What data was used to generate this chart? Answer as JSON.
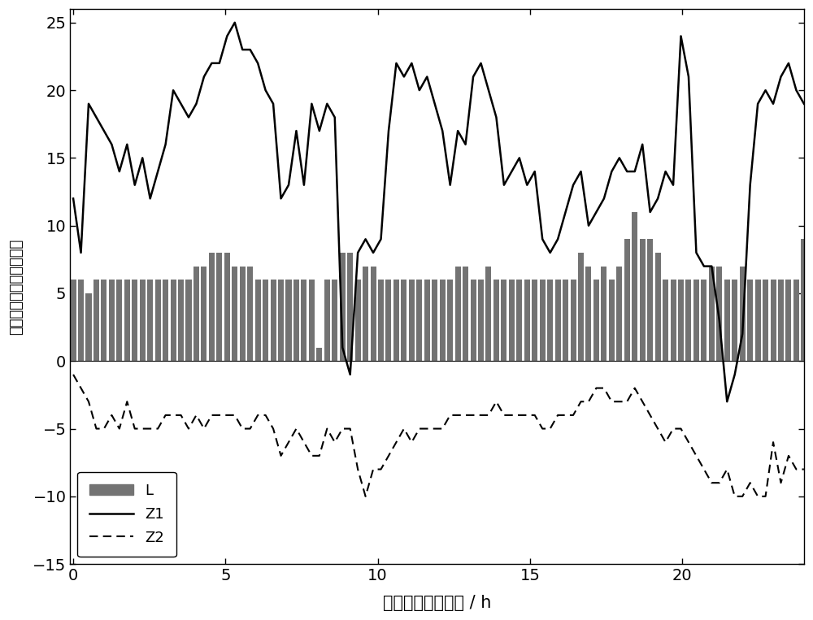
{
  "title": "",
  "xlabel": "一天内各预测时刻 / h",
  "ylabel": "最优参数指数及最优维数",
  "xlim": [
    -0.1,
    24
  ],
  "ylim": [
    -15,
    26
  ],
  "yticks": [
    -15,
    -10,
    -5,
    0,
    5,
    10,
    15,
    20,
    25
  ],
  "xticks": [
    0,
    5,
    10,
    15,
    20
  ],
  "legend_labels": [
    "L",
    "Z1",
    "Z2"
  ],
  "bar_color": "#737373",
  "z1_color": "#000000",
  "z2_color": "#000000",
  "background_color": "#ffffff",
  "n_points": 96,
  "L_values": [
    6,
    6,
    5,
    6,
    6,
    6,
    6,
    6,
    6,
    6,
    6,
    6,
    6,
    6,
    6,
    6,
    7,
    7,
    8,
    8,
    8,
    7,
    7,
    7,
    6,
    6,
    6,
    6,
    6,
    6,
    6,
    6,
    1,
    6,
    6,
    8,
    8,
    6,
    7,
    7,
    6,
    6,
    6,
    6,
    6,
    6,
    6,
    6,
    6,
    6,
    7,
    7,
    6,
    6,
    7,
    6,
    6,
    6,
    6,
    6,
    6,
    6,
    6,
    6,
    6,
    6,
    8,
    7,
    6,
    7,
    6,
    7,
    9,
    11,
    9,
    9,
    8,
    6,
    6,
    6,
    6,
    6,
    6,
    7,
    7,
    6,
    6,
    7,
    6,
    6,
    6,
    6,
    6,
    6,
    6,
    9
  ],
  "Z1_values": [
    12,
    8,
    19,
    18,
    17,
    16,
    14,
    16,
    13,
    15,
    12,
    14,
    16,
    20,
    19,
    18,
    19,
    21,
    22,
    22,
    24,
    25,
    23,
    23,
    22,
    20,
    19,
    12,
    13,
    17,
    13,
    19,
    17,
    19,
    18,
    1,
    -1,
    8,
    9,
    8,
    9,
    17,
    22,
    21,
    22,
    20,
    21,
    19,
    17,
    13,
    17,
    16,
    21,
    22,
    20,
    18,
    13,
    14,
    15,
    13,
    14,
    9,
    8,
    9,
    11,
    13,
    14,
    10,
    11,
    12,
    14,
    15,
    14,
    14,
    16,
    11,
    12,
    14,
    13,
    24,
    21,
    8,
    7,
    7,
    3,
    -3,
    -1,
    2,
    13,
    19,
    20,
    19,
    21,
    22,
    20,
    19
  ],
  "Z2_values": [
    -1,
    -2,
    -3,
    -5,
    -5,
    -4,
    -5,
    -3,
    -5,
    -5,
    -5,
    -5,
    -4,
    -4,
    -4,
    -5,
    -4,
    -5,
    -4,
    -4,
    -4,
    -4,
    -5,
    -5,
    -4,
    -4,
    -5,
    -7,
    -6,
    -5,
    -6,
    -7,
    -7,
    -5,
    -6,
    -5,
    -5,
    -8,
    -10,
    -8,
    -8,
    -7,
    -6,
    -5,
    -6,
    -5,
    -5,
    -5,
    -5,
    -4,
    -4,
    -4,
    -4,
    -4,
    -4,
    -3,
    -4,
    -4,
    -4,
    -4,
    -4,
    -5,
    -5,
    -4,
    -4,
    -4,
    -3,
    -3,
    -2,
    -2,
    -3,
    -3,
    -3,
    -2,
    -3,
    -4,
    -5,
    -6,
    -5,
    -5,
    -6,
    -7,
    -8,
    -9,
    -9,
    -8,
    -10,
    -10,
    -9,
    -10,
    -10,
    -6,
    -9,
    -7,
    -8,
    -8
  ]
}
